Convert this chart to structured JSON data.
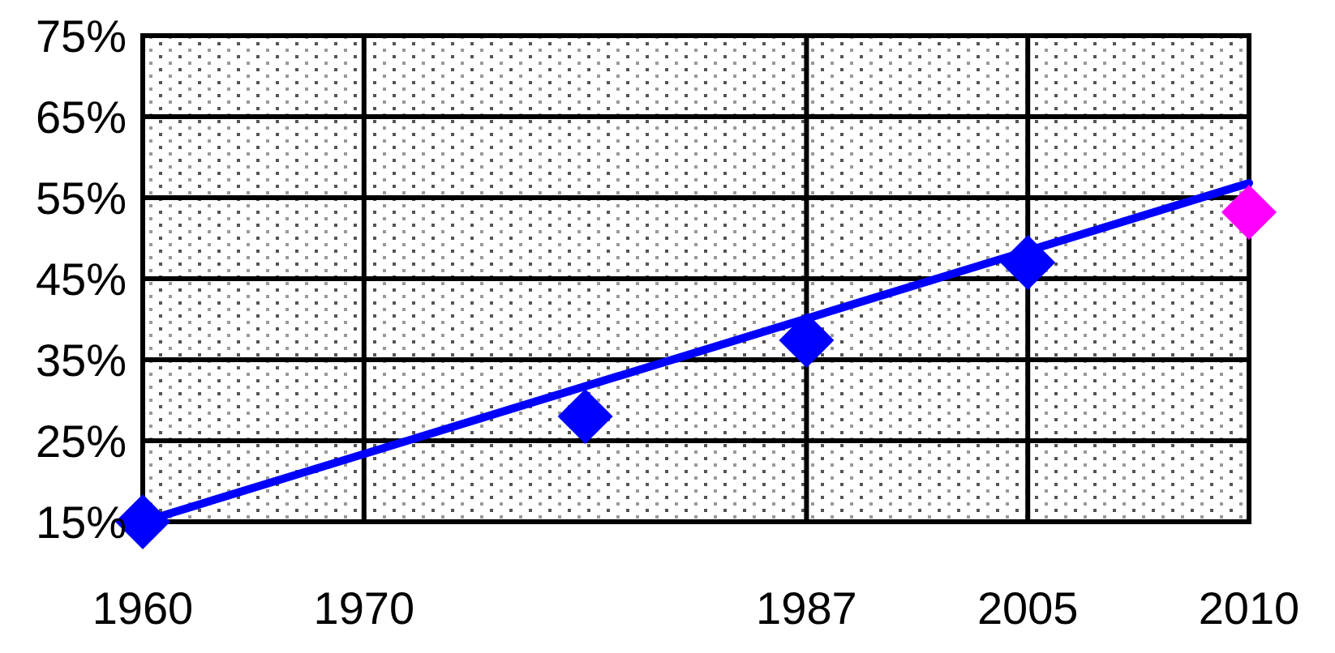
{
  "chart_data": {
    "type": "scatter",
    "categories": [
      "1960",
      "1970",
      null,
      "1987",
      "2005",
      "2010"
    ],
    "ylim": [
      15,
      75
    ],
    "yticks": [
      {
        "value": 15,
        "label": "15%"
      },
      {
        "value": 25,
        "label": "25%"
      },
      {
        "value": 35,
        "label": "35%"
      },
      {
        "value": 45,
        "label": "45%"
      },
      {
        "value": 55,
        "label": "55%"
      },
      {
        "value": 65,
        "label": "65%"
      },
      {
        "value": 75,
        "label": "75%"
      }
    ],
    "grid": true,
    "marker": "diamond",
    "series": [
      {
        "type": "line",
        "color": "#0000ff",
        "values": [
          15,
          null,
          null,
          null,
          null,
          56.8
        ],
        "marker": "none"
      },
      {
        "color": "#0000ff",
        "values": [
          15,
          null,
          28,
          37.4,
          47,
          null
        ]
      },
      {
        "color": "#ff00ff",
        "values": [
          null,
          null,
          null,
          null,
          null,
          53.2
        ]
      }
    ]
  }
}
